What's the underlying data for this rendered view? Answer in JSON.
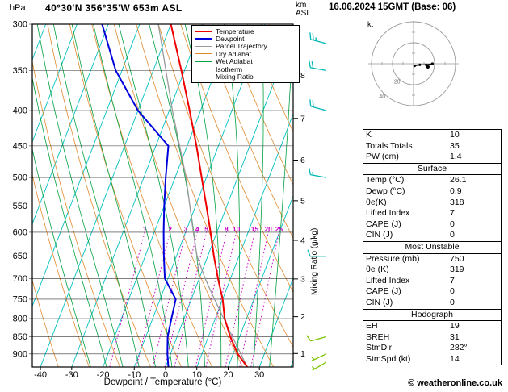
{
  "header": {
    "pressure_unit": "hPa",
    "station": "40°30'N 356°35'W 653m ASL",
    "km_label": "km",
    "asl_label": "ASL",
    "datetime": "16.06.2024 15GMT (Base: 06)",
    "xlabel": "Dewpoint / Temperature (°C)",
    "right_axis_label": "Mixing Ratio (g/kg)",
    "copyright": "© weatheronline.co.uk"
  },
  "legend": [
    {
      "label": "Temperature",
      "color": "#ee0000",
      "style": "solid",
      "weight": 2
    },
    {
      "label": "Dewpoint",
      "color": "#0000dd",
      "style": "solid",
      "weight": 2
    },
    {
      "label": "Parcel Trajectory",
      "color": "#999999",
      "style": "solid",
      "weight": 1
    },
    {
      "label": "Dry Adiabat",
      "color": "#e08a2e",
      "style": "solid",
      "weight": 1
    },
    {
      "label": "Wet Adiabat",
      "color": "#00a040",
      "style": "solid",
      "weight": 1
    },
    {
      "label": "Isotherm",
      "color": "#00c0c0",
      "style": "solid",
      "weight": 1
    },
    {
      "label": "Mixing Ratio",
      "color": "#cc00cc",
      "style": "dotted",
      "weight": 1
    }
  ],
  "axes": {
    "pressure_ticks": [
      300,
      350,
      400,
      450,
      500,
      550,
      600,
      650,
      700,
      750,
      800,
      850,
      900
    ],
    "temp_ticks": [
      -40,
      -30,
      -20,
      -10,
      0,
      10,
      20,
      30
    ],
    "km_ticks": [
      1,
      2,
      3,
      4,
      5,
      6,
      7,
      8
    ]
  },
  "chart_data": {
    "type": "line",
    "subtype": "skew-t-log-p-sounding",
    "pressure_range_hpa": [
      300,
      940
    ],
    "temp_axis_range_c": [
      -40,
      30
    ],
    "skew": 0.38,
    "isotherm_step_c": 10,
    "dry_adiabats_theta_c": [
      -40,
      -30,
      -20,
      -10,
      0,
      10,
      20,
      30,
      40,
      50,
      60,
      70,
      80,
      90,
      100,
      110,
      120,
      130
    ],
    "wet_adiabats_thetaw_c": [
      -20,
      -15,
      -10,
      -5,
      0,
      5,
      10,
      15,
      20,
      25,
      30,
      35
    ],
    "mixing_ratio_lines_gkg": [
      1,
      2,
      3,
      4,
      5,
      8,
      10,
      15,
      20,
      25
    ],
    "mixing_ratio_label_pressure_hpa": 600,
    "series": [
      {
        "name": "Temperature",
        "pressure_hpa": [
          940,
          900,
          850,
          800,
          750,
          700,
          650,
          600,
          550,
          500,
          450,
          400,
          350,
          300
        ],
        "temp_c": [
          26.1,
          21.5,
          17,
          13,
          10,
          6,
          2,
          -2,
          -6.5,
          -11.5,
          -17,
          -23.5,
          -31,
          -40
        ]
      },
      {
        "name": "Dewpoint",
        "pressure_hpa": [
          940,
          900,
          850,
          800,
          750,
          700,
          650,
          600,
          550,
          500,
          450,
          400,
          350,
          300
        ],
        "temp_c": [
          0.9,
          -1,
          -3,
          -4,
          -5,
          -11,
          -14,
          -17,
          -20,
          -23,
          -26,
          -40,
          -52,
          -62
        ]
      },
      {
        "name": "Parcel Trajectory",
        "pressure_hpa": [
          940,
          850,
          750,
          700,
          650,
          600,
          500,
          400,
          300
        ],
        "temp_c": [
          26.1,
          17.7,
          7.4,
          1.9,
          -3.4,
          -7.5,
          -16.5,
          -29,
          -44
        ]
      }
    ]
  },
  "wind_barbs": [
    {
      "pressure_hpa": 320,
      "dir_deg": 285,
      "speed_kt": 25,
      "color": "#00b8b8"
    },
    {
      "pressure_hpa": 350,
      "dir_deg": 280,
      "speed_kt": 20,
      "color": "#00b8b8"
    },
    {
      "pressure_hpa": 400,
      "dir_deg": 285,
      "speed_kt": 20,
      "color": "#00b8b8"
    },
    {
      "pressure_hpa": 500,
      "dir_deg": 280,
      "speed_kt": 15,
      "color": "#00b8b8"
    },
    {
      "pressure_hpa": 650,
      "dir_deg": 270,
      "speed_kt": 10,
      "color": "#00b8b8"
    },
    {
      "pressure_hpa": 850,
      "dir_deg": 255,
      "speed_kt": 10,
      "color": "#7cc400"
    },
    {
      "pressure_hpa": 900,
      "dir_deg": 245,
      "speed_kt": 5,
      "color": "#7cc400"
    },
    {
      "pressure_hpa": 925,
      "dir_deg": 240,
      "speed_kt": 5,
      "color": "#7cc400"
    }
  ],
  "hodograph": {
    "unit": "kt",
    "rings_kt": [
      20,
      40
    ],
    "trace_uv_kt": [
      [
        1,
        -2
      ],
      [
        6,
        -1
      ],
      [
        12,
        -1
      ],
      [
        18,
        0
      ]
    ],
    "storm_motion_uv_kt": [
      13.7,
      -2.9
    ]
  },
  "stats": {
    "sections": [
      {
        "title": "",
        "rows": [
          [
            "K",
            "10"
          ],
          [
            "Totals Totals",
            "35"
          ],
          [
            "PW (cm)",
            "1.4"
          ]
        ]
      },
      {
        "title": "Surface",
        "rows": [
          [
            "Temp (°C)",
            "26.1"
          ],
          [
            "Dewp (°C)",
            "0.9"
          ],
          [
            "θe(K)",
            "318"
          ],
          [
            "Lifted Index",
            "7"
          ],
          [
            "CAPE (J)",
            "0"
          ],
          [
            "CIN (J)",
            "0"
          ]
        ]
      },
      {
        "title": "Most Unstable",
        "rows": [
          [
            "Pressure (mb)",
            "750"
          ],
          [
            "θe (K)",
            "319"
          ],
          [
            "Lifted Index",
            "7"
          ],
          [
            "CAPE (J)",
            "0"
          ],
          [
            "CIN (J)",
            "0"
          ]
        ]
      },
      {
        "title": "Hodograph",
        "rows": [
          [
            "EH",
            "19"
          ],
          [
            "SREH",
            "31"
          ],
          [
            "StmDir",
            "282°"
          ],
          [
            "StmSpd (kt)",
            "14"
          ]
        ]
      }
    ]
  },
  "colors": {
    "temperature": "#ee0000",
    "dewpoint": "#0000dd",
    "parcel": "#999999",
    "dry_adiabat": "#e08a2e",
    "wet_adiabat": "#00a040",
    "isotherm": "#00c0c0",
    "mixing_ratio": "#cc00cc",
    "grid": "#333333",
    "barb_upper": "#00b8b8",
    "barb_lower": "#7cc400"
  }
}
